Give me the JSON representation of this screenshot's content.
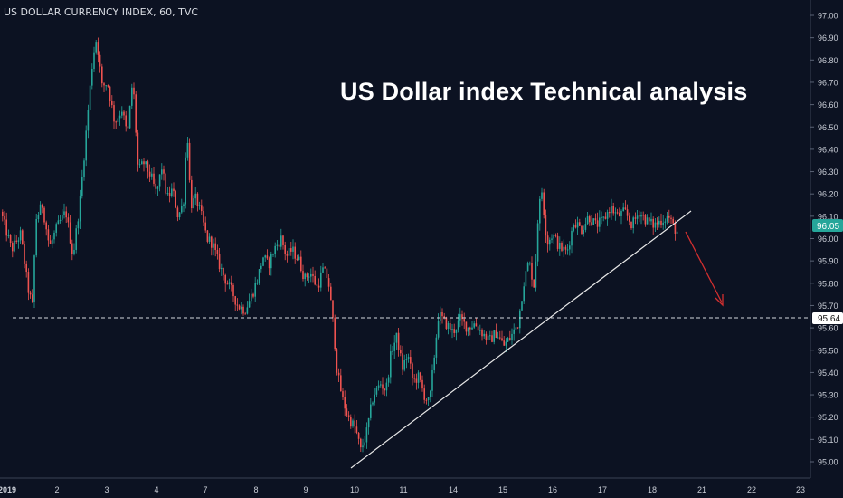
{
  "header": {
    "symbol": "US DOLLAR CURRENCY INDEX, 60, TVC"
  },
  "annotation": {
    "headline": "US Dollar index Technical analysis"
  },
  "colors": {
    "background": "#0c1222",
    "up": "#26a69a",
    "down": "#ef5350",
    "trendline": "#e8e8e8",
    "arrow": "#d32f2f",
    "axis_text": "#c9cdd6",
    "price_badge": "#26a69a"
  },
  "chart_data": {
    "type": "candlestick",
    "ylim": [
      94.94,
      97.06
    ],
    "y_ticks": [
      "97.00",
      "96.90",
      "96.80",
      "96.70",
      "96.60",
      "96.50",
      "96.40",
      "96.30",
      "96.20",
      "96.10",
      "96.00",
      "95.90",
      "95.80",
      "95.70",
      "95.60",
      "95.50",
      "95.40",
      "95.30",
      "95.20",
      "95.10",
      "95.00"
    ],
    "x_ticks": [
      "2019",
      "2",
      "3",
      "4",
      "7",
      "8",
      "9",
      "10",
      "11",
      "14",
      "15",
      "16",
      "17",
      "18",
      "21",
      "22",
      "23"
    ],
    "current_price": "96.05",
    "support_level": "95.64",
    "close_path": [
      [
        0,
        96.12
      ],
      [
        12,
        95.95
      ],
      [
        22,
        96.02
      ],
      [
        30,
        95.78
      ],
      [
        36,
        95.68
      ],
      [
        38,
        96.08
      ],
      [
        46,
        96.15
      ],
      [
        54,
        95.96
      ],
      [
        62,
        96.05
      ],
      [
        72,
        96.12
      ],
      [
        80,
        95.92
      ],
      [
        88,
        96.18
      ],
      [
        96,
        96.55
      ],
      [
        102,
        96.82
      ],
      [
        106,
        96.9
      ],
      [
        112,
        96.68
      ],
      [
        118,
        96.7
      ],
      [
        126,
        96.52
      ],
      [
        134,
        96.58
      ],
      [
        140,
        96.46
      ],
      [
        146,
        96.72
      ],
      [
        152,
        96.3
      ],
      [
        158,
        96.34
      ],
      [
        166,
        96.28
      ],
      [
        172,
        96.2
      ],
      [
        178,
        96.32
      ],
      [
        184,
        96.18
      ],
      [
        190,
        96.22
      ],
      [
        196,
        96.1
      ],
      [
        202,
        96.16
      ],
      [
        206,
        96.5
      ],
      [
        210,
        96.15
      ],
      [
        216,
        96.18
      ],
      [
        222,
        96.1
      ],
      [
        228,
        96.0
      ],
      [
        234,
        95.98
      ],
      [
        240,
        95.9
      ],
      [
        248,
        95.82
      ],
      [
        256,
        95.76
      ],
      [
        262,
        95.7
      ],
      [
        270,
        95.68
      ],
      [
        278,
        95.75
      ],
      [
        284,
        95.82
      ],
      [
        290,
        95.92
      ],
      [
        296,
        95.88
      ],
      [
        302,
        95.95
      ],
      [
        310,
        96.0
      ],
      [
        316,
        95.92
      ],
      [
        322,
        95.95
      ],
      [
        330,
        95.9
      ],
      [
        336,
        95.82
      ],
      [
        342,
        95.85
      ],
      [
        350,
        95.78
      ],
      [
        356,
        95.86
      ],
      [
        362,
        95.82
      ],
      [
        368,
        95.6
      ],
      [
        372,
        95.4
      ],
      [
        378,
        95.28
      ],
      [
        384,
        95.2
      ],
      [
        392,
        95.15
      ],
      [
        398,
        95.05
      ],
      [
        404,
        95.12
      ],
      [
        412,
        95.3
      ],
      [
        420,
        95.35
      ],
      [
        426,
        95.32
      ],
      [
        432,
        95.5
      ],
      [
        438,
        95.56
      ],
      [
        444,
        95.42
      ],
      [
        450,
        95.48
      ],
      [
        456,
        95.36
      ],
      [
        462,
        95.38
      ],
      [
        468,
        95.3
      ],
      [
        474,
        95.26
      ],
      [
        478,
        95.42
      ],
      [
        484,
        95.66
      ],
      [
        492,
        95.62
      ],
      [
        500,
        95.58
      ],
      [
        508,
        95.64
      ],
      [
        516,
        95.6
      ],
      [
        524,
        95.62
      ],
      [
        532,
        95.58
      ],
      [
        540,
        95.54
      ],
      [
        548,
        95.58
      ],
      [
        556,
        95.52
      ],
      [
        564,
        95.56
      ],
      [
        572,
        95.62
      ],
      [
        578,
        95.8
      ],
      [
        584,
        95.9
      ],
      [
        590,
        95.78
      ],
      [
        594,
        96.1
      ],
      [
        598,
        96.22
      ],
      [
        604,
        95.98
      ],
      [
        610,
        96.02
      ],
      [
        618,
        95.96
      ],
      [
        626,
        95.94
      ],
      [
        634,
        96.08
      ],
      [
        642,
        96.04
      ],
      [
        650,
        96.1
      ],
      [
        658,
        96.06
      ],
      [
        666,
        96.08
      ],
      [
        674,
        96.14
      ],
      [
        682,
        96.1
      ],
      [
        690,
        96.12
      ],
      [
        698,
        96.06
      ],
      [
        706,
        96.12
      ],
      [
        714,
        96.08
      ],
      [
        722,
        96.06
      ],
      [
        730,
        96.08
      ],
      [
        738,
        96.1
      ],
      [
        744,
        96.05
      ],
      [
        748,
        96.03
      ]
    ]
  }
}
